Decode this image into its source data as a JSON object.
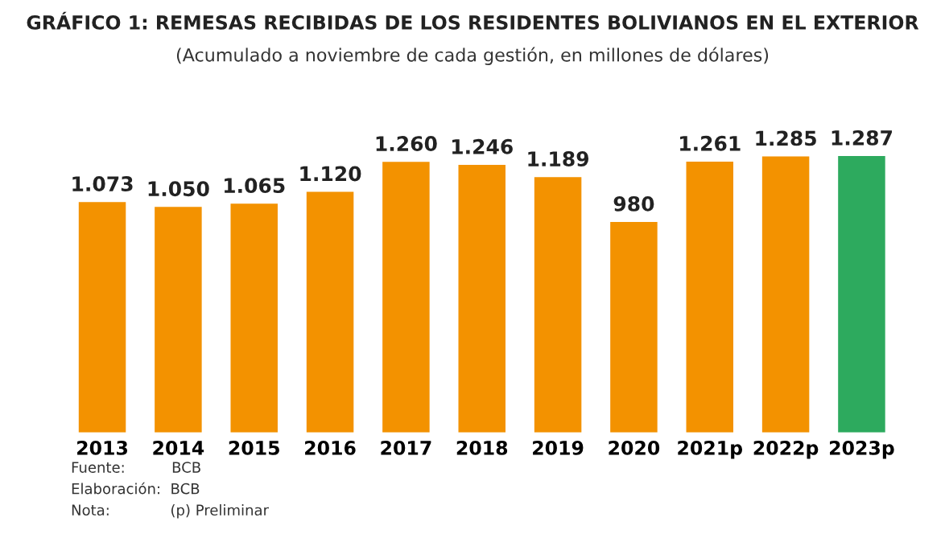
{
  "chart_data": {
    "type": "bar",
    "title": "GRÁFICO 1: REMESAS RECIBIDAS DE LOS RESIDENTES BOLIVIANOS EN EL EXTERIOR",
    "subtitle": "(Acumulado a noviembre de cada gestión, en millones de dólares)",
    "categories": [
      "2013",
      "2014",
      "2015",
      "2016",
      "2017",
      "2018",
      "2019",
      "2020",
      "2021p",
      "2022p",
      "2023p"
    ],
    "values": [
      1073,
      1050,
      1065,
      1120,
      1260,
      1246,
      1189,
      980,
      1261,
      1285,
      1287
    ],
    "value_labels": [
      "1.073",
      "1.050",
      "1.065",
      "1.120",
      "1.260",
      "1.246",
      "1.189",
      "980",
      "1.261",
      "1.285",
      "1.287"
    ],
    "colors": [
      "#f39200",
      "#f39200",
      "#f39200",
      "#f39200",
      "#f39200",
      "#f39200",
      "#f39200",
      "#f39200",
      "#f39200",
      "#f39200",
      "#2daa5e"
    ],
    "annotations": [
      "Fuente:          BCB",
      "Elaboración:  BCB",
      "Nota:             (p) Preliminar"
    ]
  }
}
